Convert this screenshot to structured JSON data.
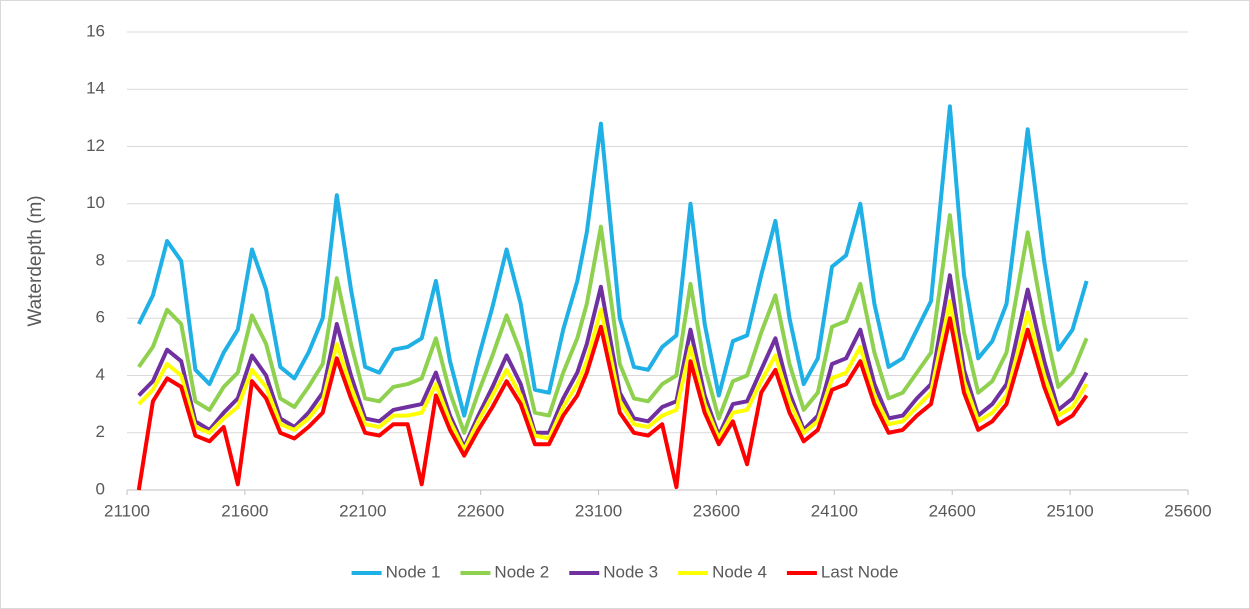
{
  "chart_data": {
    "type": "line",
    "y_label": "Waterdepth (m)",
    "x": [
      21150,
      21210,
      21270,
      21330,
      21390,
      21450,
      21510,
      21570,
      21630,
      21690,
      21750,
      21810,
      21870,
      21930,
      21990,
      22050,
      22110,
      22170,
      22230,
      22290,
      22350,
      22410,
      22470,
      22530,
      22590,
      22650,
      22710,
      22770,
      22830,
      22890,
      22950,
      23010,
      23050,
      23110,
      23190,
      23250,
      23310,
      23370,
      23430,
      23490,
      23550,
      23610,
      23670,
      23730,
      23790,
      23850,
      23910,
      23970,
      24030,
      24090,
      24150,
      24210,
      24270,
      24330,
      24390,
      24450,
      24510,
      24590,
      24650,
      24710,
      24770,
      24830,
      24890,
      24920,
      24990,
      25050,
      25110,
      25170
    ],
    "series": [
      {
        "name": "Node 1",
        "color": "#1fb0e6",
        "values": [
          5.8,
          6.8,
          8.7,
          8.0,
          4.2,
          3.7,
          4.8,
          5.6,
          8.4,
          7.0,
          4.3,
          3.9,
          4.8,
          6.0,
          10.3,
          7.0,
          4.3,
          4.1,
          4.9,
          5.0,
          5.3,
          7.3,
          4.5,
          2.6,
          4.6,
          6.4,
          8.4,
          6.5,
          3.5,
          3.4,
          5.6,
          7.3,
          9.0,
          12.8,
          6.0,
          4.3,
          4.2,
          5.0,
          5.4,
          10.0,
          5.8,
          3.3,
          5.2,
          5.4,
          7.5,
          9.4,
          6.0,
          3.7,
          4.6,
          7.8,
          8.2,
          10.0,
          6.5,
          4.3,
          4.6,
          5.6,
          6.6,
          13.4,
          7.5,
          4.6,
          5.2,
          6.5,
          10.5,
          12.6,
          8.0,
          4.9,
          5.6,
          7.3
        ]
      },
      {
        "name": "Node 2",
        "color": "#8fd14f",
        "values": [
          4.3,
          5.0,
          6.3,
          5.8,
          3.1,
          2.8,
          3.6,
          4.1,
          6.1,
          5.1,
          3.2,
          2.9,
          3.6,
          4.4,
          7.4,
          5.1,
          3.2,
          3.1,
          3.6,
          3.7,
          3.9,
          5.3,
          3.4,
          2.0,
          3.4,
          4.7,
          6.1,
          4.8,
          2.7,
          2.6,
          4.1,
          5.3,
          6.5,
          9.2,
          4.4,
          3.2,
          3.1,
          3.7,
          4.0,
          7.2,
          4.3,
          2.5,
          3.8,
          4.0,
          5.5,
          6.8,
          4.4,
          2.8,
          3.4,
          5.7,
          5.9,
          7.2,
          4.8,
          3.2,
          3.4,
          4.1,
          4.8,
          9.6,
          5.5,
          3.4,
          3.8,
          4.8,
          7.6,
          9.0,
          5.8,
          3.6,
          4.1,
          5.3
        ]
      },
      {
        "name": "Node 3",
        "color": "#7030a0",
        "values": [
          3.3,
          3.8,
          4.9,
          4.5,
          2.4,
          2.1,
          2.7,
          3.2,
          4.7,
          4.0,
          2.5,
          2.2,
          2.7,
          3.4,
          5.8,
          4.0,
          2.5,
          2.4,
          2.8,
          2.9,
          3.0,
          4.1,
          2.6,
          1.5,
          2.6,
          3.6,
          4.7,
          3.7,
          2.0,
          2.0,
          3.2,
          4.1,
          5.1,
          7.1,
          3.4,
          2.5,
          2.4,
          2.9,
          3.1,
          5.6,
          3.3,
          1.9,
          3.0,
          3.1,
          4.2,
          5.3,
          3.4,
          2.1,
          2.6,
          4.4,
          4.6,
          5.6,
          3.7,
          2.5,
          2.6,
          3.2,
          3.7,
          7.5,
          4.2,
          2.6,
          3.0,
          3.7,
          5.9,
          7.0,
          4.5,
          2.8,
          3.2,
          4.1
        ]
      },
      {
        "name": "Node 4",
        "color": "#ffff00",
        "values": [
          3.0,
          3.5,
          4.4,
          4.0,
          2.2,
          2.0,
          2.5,
          2.9,
          4.2,
          3.6,
          2.3,
          2.1,
          2.5,
          3.1,
          5.1,
          3.6,
          2.3,
          2.2,
          2.6,
          2.6,
          2.7,
          3.7,
          2.4,
          1.4,
          2.4,
          3.3,
          4.2,
          3.3,
          1.9,
          1.8,
          2.9,
          3.7,
          4.5,
          6.3,
          3.1,
          2.3,
          2.2,
          2.6,
          2.8,
          5.0,
          3.0,
          1.8,
          2.7,
          2.8,
          3.8,
          4.7,
          3.1,
          2.0,
          2.4,
          3.9,
          4.1,
          5.0,
          3.3,
          2.3,
          2.4,
          2.9,
          3.4,
          6.6,
          3.8,
          2.4,
          2.7,
          3.3,
          5.2,
          6.2,
          4.0,
          2.6,
          2.9,
          3.7
        ]
      },
      {
        "name": "Last Node",
        "color": "#ff0000",
        "values": [
          0,
          3.1,
          3.9,
          3.6,
          1.9,
          1.7,
          2.2,
          0.2,
          3.8,
          3.2,
          2.0,
          1.8,
          2.2,
          2.7,
          4.6,
          3.2,
          2.0,
          1.9,
          2.3,
          2.3,
          0.2,
          3.3,
          2.1,
          1.2,
          2.1,
          2.9,
          3.8,
          3.0,
          1.6,
          1.6,
          2.6,
          3.3,
          4.1,
          5.7,
          2.7,
          2.0,
          1.9,
          2.3,
          0.1,
          4.5,
          2.7,
          1.6,
          2.4,
          0.9,
          3.4,
          4.2,
          2.7,
          1.7,
          2.1,
          3.5,
          3.7,
          4.5,
          3.0,
          2.0,
          2.1,
          2.6,
          3.0,
          6.0,
          3.4,
          2.1,
          2.4,
          3.0,
          4.7,
          5.6,
          3.6,
          2.3,
          2.6,
          3.3
        ]
      }
    ],
    "xlim": [
      21100,
      25600
    ],
    "xticks": [
      21100,
      21600,
      22100,
      22600,
      23100,
      23600,
      24100,
      24600,
      25100,
      25600
    ],
    "ylim": [
      0,
      16
    ],
    "yticks": [
      0,
      2,
      4,
      6,
      8,
      10,
      12,
      14,
      16
    ],
    "grid": true,
    "legend": "bottom"
  }
}
